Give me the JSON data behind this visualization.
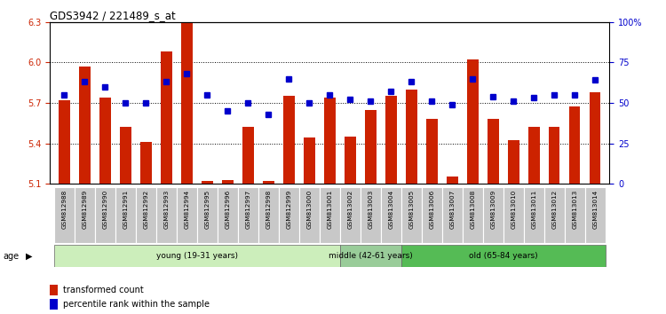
{
  "title": "GDS3942 / 221489_s_at",
  "samples": [
    "GSM812988",
    "GSM812989",
    "GSM812990",
    "GSM812991",
    "GSM812992",
    "GSM812993",
    "GSM812994",
    "GSM812995",
    "GSM812996",
    "GSM812997",
    "GSM812998",
    "GSM812999",
    "GSM813000",
    "GSM813001",
    "GSM813002",
    "GSM813003",
    "GSM813004",
    "GSM813005",
    "GSM813006",
    "GSM813007",
    "GSM813008",
    "GSM813009",
    "GSM813010",
    "GSM813011",
    "GSM813012",
    "GSM813013",
    "GSM813014"
  ],
  "bar_values": [
    5.72,
    5.97,
    5.74,
    5.52,
    5.41,
    6.08,
    6.3,
    5.12,
    5.13,
    5.52,
    5.12,
    5.75,
    5.44,
    5.74,
    5.45,
    5.65,
    5.75,
    5.8,
    5.58,
    5.15,
    6.02,
    5.58,
    5.42,
    5.52,
    5.52,
    5.67,
    5.78
  ],
  "percentile_values": [
    55,
    63,
    60,
    50,
    50,
    63,
    68,
    55,
    45,
    50,
    43,
    65,
    50,
    55,
    52,
    51,
    57,
    63,
    51,
    49,
    65,
    54,
    51,
    53,
    55,
    55,
    64
  ],
  "ymin": 5.1,
  "ymax": 6.3,
  "yticks": [
    5.1,
    5.4,
    5.7,
    6.0,
    6.3
  ],
  "pct_ticks": [
    0,
    25,
    50,
    75,
    100
  ],
  "pct_tick_labels": [
    "0",
    "25",
    "50",
    "75",
    "100%"
  ],
  "bar_color": "#CC2200",
  "percentile_color": "#0000CC",
  "groups": [
    {
      "label": "young (19-31 years)",
      "start": 0,
      "end": 14,
      "color": "#CCEECC"
    },
    {
      "label": "middle (42-61 years)",
      "start": 14,
      "end": 17,
      "color": "#88CC88"
    },
    {
      "label": "old (65-84 years)",
      "start": 17,
      "end": 27,
      "color": "#44BB44"
    }
  ],
  "legend_items": [
    {
      "label": "transformed count",
      "color": "#CC2200"
    },
    {
      "label": "percentile rank within the sample",
      "color": "#0000CC"
    }
  ],
  "age_label": "age"
}
